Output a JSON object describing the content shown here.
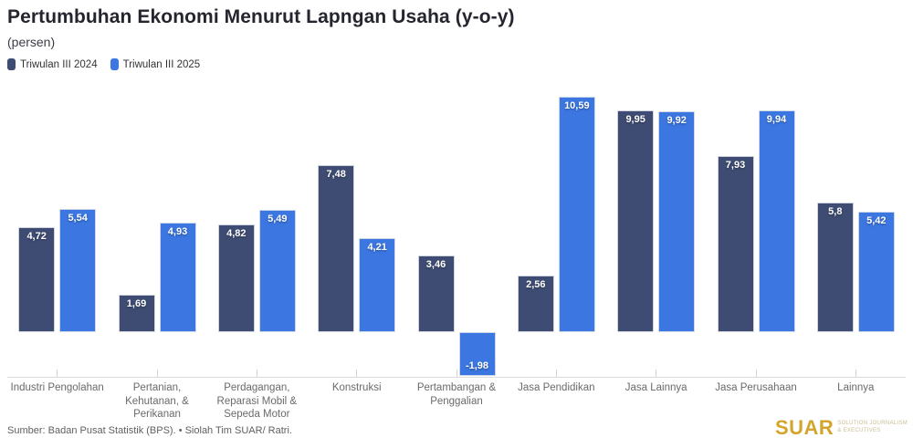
{
  "header": {
    "title": "Pertumbuhan Ekonomi Menurut Lapngan Usaha (y-o-y)",
    "subtitle": "(persen)"
  },
  "colors": {
    "series_2024": "#3e4c73",
    "series_2025": "#3b76e1",
    "axis_line": "#dcdcdc",
    "brand_gold": "#d3a52c"
  },
  "chart_data": {
    "type": "bar",
    "title": "Pertumbuhan Ekonomi Menurut Lapngan Usaha (y-o-y)",
    "subtitle": "(persen)",
    "categories": [
      "Industri Pengolahan",
      "Pertanian, Kehutanan, & Perikanan",
      "Perdagangan, Reparasi Mobil & Sepeda Motor",
      "Konstruksi",
      "Pertambangan & Penggalian",
      "Jasa Pendidikan",
      "Jasa Lainnya",
      "Jasa Perusahaan",
      "Lainnya"
    ],
    "series": [
      {
        "name": "Triwulan III 2024",
        "color": "#3e4c73",
        "values": [
          4.72,
          1.69,
          4.82,
          7.48,
          3.46,
          2.56,
          9.95,
          7.93,
          5.8
        ],
        "labels": [
          "4,72",
          "1,69",
          "4,82",
          "7,48",
          "3,46",
          "2,56",
          "9,95",
          "7,93",
          "5,8"
        ]
      },
      {
        "name": "Triwulan III 2025",
        "color": "#3b76e1",
        "values": [
          5.54,
          4.93,
          5.49,
          4.21,
          -1.98,
          10.59,
          9.92,
          9.94,
          5.42
        ],
        "labels": [
          "5,54",
          "4,93",
          "5,49",
          "4,21",
          "-1,98",
          "10,59",
          "9,92",
          "9,94",
          "5,42"
        ]
      }
    ],
    "ylim": [
      -2.5,
      11.5
    ],
    "grid": false,
    "legend_position": "top-left",
    "value_labels": "inside-bar-end",
    "xlabel": "",
    "ylabel": ""
  },
  "footer": {
    "source": "Sumber: Badan Pusat Statistik (BPS). • Siolah Tim SUAR/ Ratri.",
    "brand": "SUAR",
    "brand_tagline_line1": "Solution Journalism",
    "brand_tagline_line2": "& Executives"
  }
}
